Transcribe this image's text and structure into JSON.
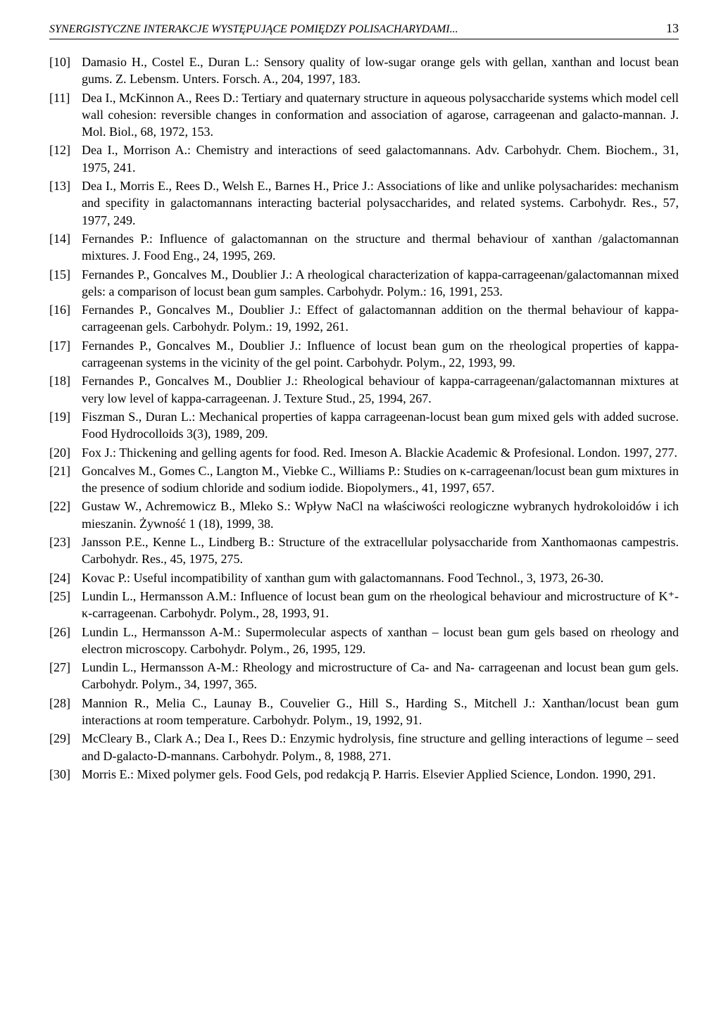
{
  "header": {
    "running_title": "SYNERGISTYCZNE INTERAKCJE WYSTĘPUJĄCE POMIĘDZY POLISACHARYDAMI...",
    "page_number": "13"
  },
  "references": [
    {
      "num": "[10]",
      "text": "Damasio H., Costel E., Duran L.: Sensory quality of low-sugar orange gels with gellan, xanthan and locust bean gums. Z. Lebensm. Unters. Forsch. A., 204, 1997, 183."
    },
    {
      "num": "[11]",
      "text": "Dea I., McKinnon A., Rees D.: Tertiary and quaternary structure in aqueous polysaccharide systems which model cell wall cohesion: reversible changes in conformation and association of agarose, carrageenan and galacto-mannan. J. Mol. Biol., 68, 1972, 153."
    },
    {
      "num": "[12]",
      "text": "Dea I., Morrison A.: Chemistry and interactions of seed galactomannans. Adv. Carbohydr. Chem. Biochem., 31, 1975, 241."
    },
    {
      "num": "[13]",
      "text": "Dea I., Morris E., Rees D., Welsh E., Barnes H., Price J.: Associations of like and unlike polysacharides: mechanism and specifity in galactomannans interacting bacterial polysaccharides, and related systems. Carbohydr. Res., 57, 1977, 249."
    },
    {
      "num": "[14]",
      "text": "Fernandes P.: Influence of galactomannan on the structure and thermal behaviour of xanthan /galactomannan mixtures. J. Food Eng., 24, 1995, 269."
    },
    {
      "num": "[15]",
      "text": "Fernandes P., Goncalves M., Doublier J.: A rheological characterization of kappa-carrageenan/galactomannan mixed gels: a comparison of locust bean gum samples. Carbohydr. Polym.: 16, 1991, 253."
    },
    {
      "num": "[16]",
      "text": "Fernandes P., Goncalves M., Doublier J.: Effect of galactomannan addition on the thermal behaviour of kappa-carrageenan gels. Carbohydr. Polym.: 19, 1992, 261."
    },
    {
      "num": "[17]",
      "text": "Fernandes P., Goncalves M., Doublier J.: Influence of locust bean gum on the rheological properties of kappa-carrageenan systems in the vicinity of the gel point. Carbohydr. Polym., 22, 1993, 99."
    },
    {
      "num": "[18]",
      "text": "Fernandes P., Goncalves M., Doublier J.: Rheological behaviour of kappa-carrageenan/galactomannan mixtures at very low level of kappa-carrageenan. J. Texture Stud., 25, 1994, 267."
    },
    {
      "num": "[19]",
      "text": "Fiszman S., Duran L.: Mechanical properties of kappa carrageenan-locust bean gum mixed gels with added sucrose. Food Hydrocolloids 3(3), 1989, 209."
    },
    {
      "num": "[20]",
      "text": "Fox J.: Thickening and gelling agents for food. Red. Imeson A. Blackie Academic & Profesional. London. 1997, 277."
    },
    {
      "num": "[21]",
      "text": "Goncalves M., Gomes C., Langton M., Viebke C., Williams P.: Studies on κ-carrageenan/locust bean gum mixtures in the presence of sodium chloride and sodium iodide. Biopolymers., 41, 1997, 657."
    },
    {
      "num": "[22]",
      "text": "Gustaw W., Achremowicz B., Mleko S.: Wpływ NaCl na właściwości reologiczne wybranych hydrokoloidów i ich mieszanin. Żywność 1 (18), 1999, 38."
    },
    {
      "num": "[23]",
      "text": "Jansson P.E., Kenne L., Lindberg B.: Structure of the extracellular polysaccharide from Xanthomaonas campestris. Carbohydr. Res., 45, 1975, 275."
    },
    {
      "num": "[24]",
      "text": "Kovac P.: Useful incompatibility of xanthan gum with galactomannans. Food Technol., 3, 1973, 26-30."
    },
    {
      "num": "[25]",
      "text": "Lundin L., Hermansson A.M.: Influence of locust bean gum on the rheological behaviour and microstructure of K⁺- κ-carrageenan. Carbohydr. Polym., 28, 1993, 91."
    },
    {
      "num": "[26]",
      "text": "Lundin L., Hermansson A-M.: Supermolecular aspects of xanthan – locust bean gum gels based on rheology and electron microscopy. Carbohydr. Polym., 26, 1995, 129."
    },
    {
      "num": "[27]",
      "text": "Lundin L., Hermansson A-M.: Rheology and microstructure of Ca- and Na- carrageenan and locust bean gum gels. Carbohydr. Polym., 34, 1997, 365."
    },
    {
      "num": "[28]",
      "text": "Mannion R., Melia C., Launay B., Couvelier G., Hill S., Harding S., Mitchell J.: Xanthan/locust bean gum interactions at room temperature. Carbohydr. Polym., 19, 1992, 91."
    },
    {
      "num": "[29]",
      "text": "McCleary B., Clark A.; Dea I., Rees D.: Enzymic hydrolysis, fine structure and gelling interactions of legume – seed and D-galacto-D-mannans. Carbohydr. Polym., 8, 1988, 271."
    },
    {
      "num": "[30]",
      "text": "Morris E.: Mixed polymer gels. Food Gels, pod redakcją P. Harris. Elsevier Applied Science, London. 1990, 291."
    }
  ]
}
